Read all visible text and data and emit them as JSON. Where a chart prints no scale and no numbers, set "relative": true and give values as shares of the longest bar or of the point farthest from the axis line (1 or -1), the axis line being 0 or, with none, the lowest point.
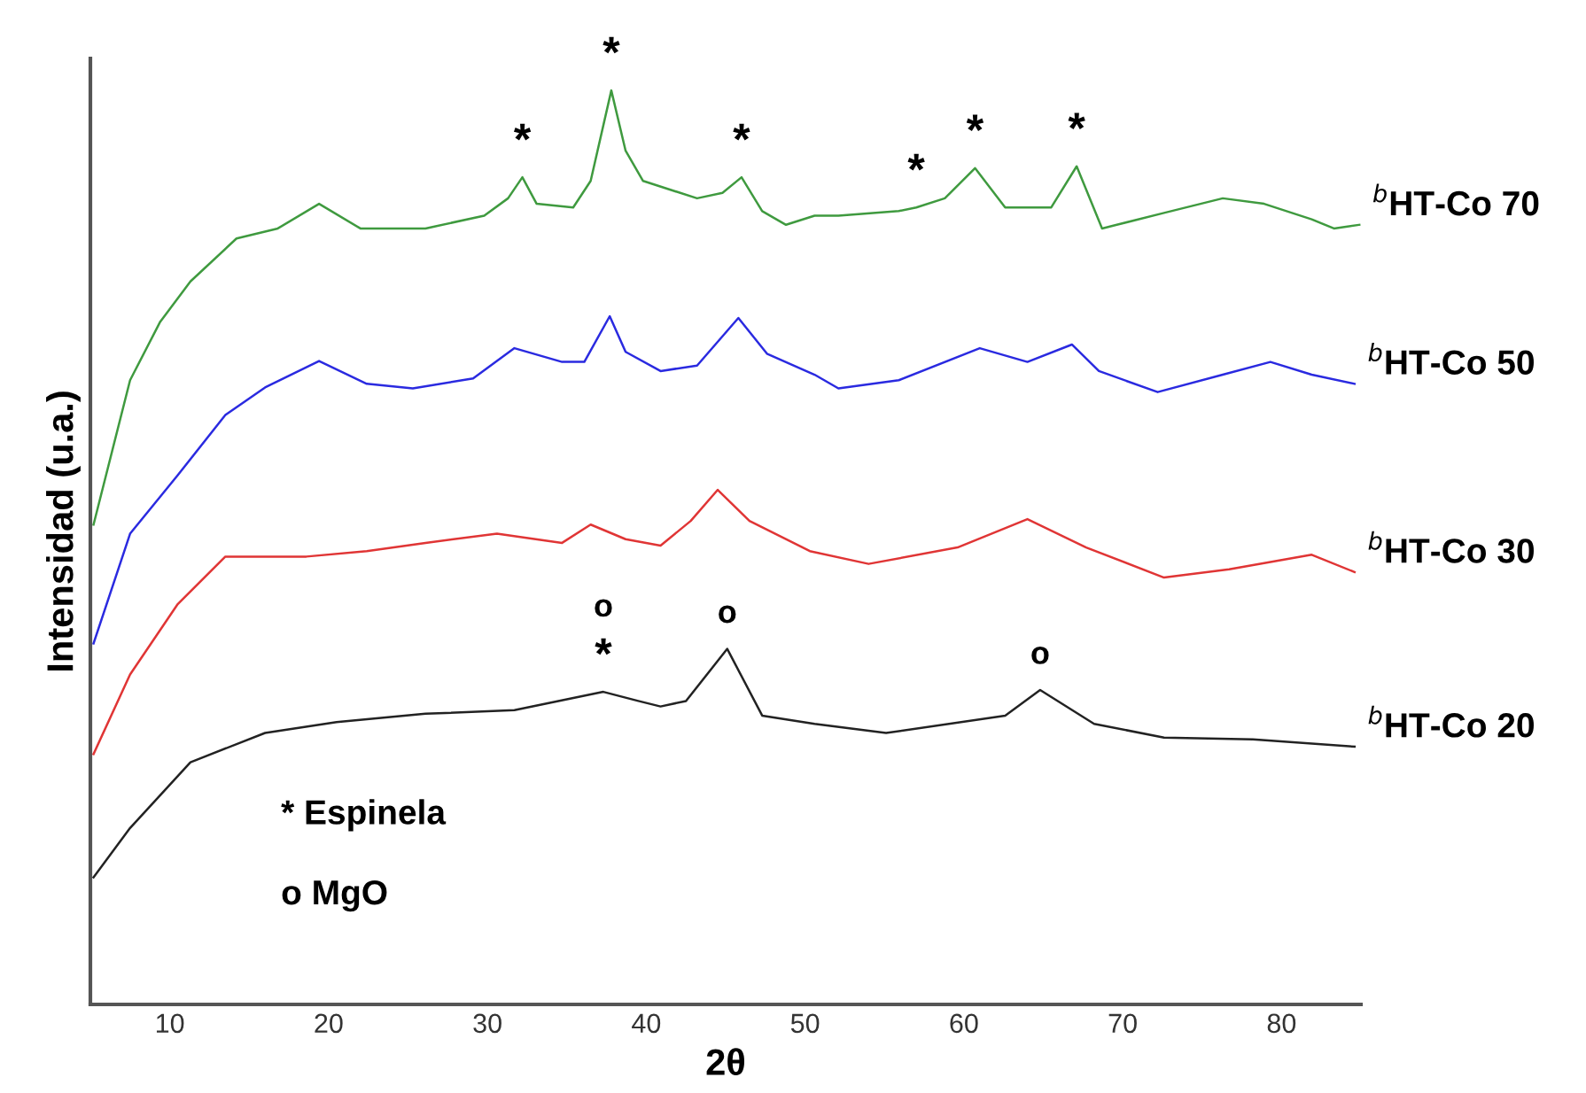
{
  "chart_data": {
    "type": "line",
    "relative": true,
    "xlabel": "2θ",
    "ylabel": "Intensidad (u.a.)",
    "xlim": [
      5,
      85
    ],
    "xticks": [
      10,
      20,
      30,
      40,
      50,
      60,
      70,
      80
    ],
    "series": [
      {
        "name": "$^{b}$HT-Co 70",
        "color": "#3f9a3f",
        "x": [
          5.2,
          7.5,
          9.4,
          11.3,
          14.2,
          16.8,
          19.4,
          22.0,
          26.1,
          29.8,
          31.3,
          32.2,
          33.1,
          35.4,
          36.5,
          37.8,
          38.7,
          39.8,
          43.2,
          44.8,
          46.0,
          47.3,
          48.8,
          50.6,
          52.1,
          55.9,
          57.0,
          58.8,
          60.7,
          62.6,
          65.5,
          67.1,
          68.7,
          72.6,
          76.3,
          78.9,
          81.9,
          83.3,
          84.9
        ],
        "values": [
          0.525,
          0.683,
          0.747,
          0.791,
          0.838,
          0.849,
          0.876,
          0.849,
          0.849,
          0.863,
          0.882,
          0.905,
          0.876,
          0.872,
          0.901,
          1.0,
          0.934,
          0.901,
          0.882,
          0.888,
          0.905,
          0.868,
          0.853,
          0.863,
          0.863,
          0.868,
          0.872,
          0.882,
          0.915,
          0.872,
          0.872,
          0.917,
          0.849,
          0.866,
          0.882,
          0.876,
          0.859,
          0.849,
          0.853
        ]
      },
      {
        "name": "$^{b}$HT-Co 50",
        "color": "#2a2ae0",
        "x": [
          5.2,
          7.5,
          10.5,
          13.5,
          16.0,
          19.4,
          22.4,
          25.3,
          29.1,
          31.7,
          34.7,
          36.1,
          37.7,
          38.7,
          40.9,
          43.2,
          45.8,
          47.6,
          50.6,
          52.1,
          55.9,
          61.0,
          64.0,
          66.8,
          68.5,
          72.2,
          76.3,
          79.3,
          81.9,
          84.6
        ],
        "values": [
          0.395,
          0.515,
          0.579,
          0.645,
          0.675,
          0.704,
          0.679,
          0.674,
          0.685,
          0.718,
          0.703,
          0.703,
          0.753,
          0.714,
          0.693,
          0.699,
          0.751,
          0.712,
          0.689,
          0.674,
          0.683,
          0.718,
          0.703,
          0.722,
          0.693,
          0.67,
          0.689,
          0.703,
          0.689,
          0.679
        ]
      },
      {
        "name": "$^{b}$HT-Co 30",
        "color": "#e03535",
        "x": [
          5.2,
          7.5,
          10.5,
          13.5,
          18.6,
          22.4,
          26.1,
          30.6,
          34.7,
          36.5,
          38.7,
          40.9,
          42.8,
          44.5,
          46.5,
          50.3,
          54.0,
          59.6,
          64.0,
          67.7,
          72.6,
          76.7,
          81.9,
          84.6
        ],
        "values": [
          0.274,
          0.361,
          0.438,
          0.49,
          0.49,
          0.496,
          0.505,
          0.515,
          0.505,
          0.525,
          0.509,
          0.502,
          0.529,
          0.563,
          0.529,
          0.496,
          0.482,
          0.5,
          0.531,
          0.5,
          0.467,
          0.476,
          0.492,
          0.473
        ]
      },
      {
        "name": "$^{b}$HT-Co 20",
        "color": "#222222",
        "x": [
          5.2,
          7.5,
          11.3,
          16.0,
          20.5,
          26.1,
          31.7,
          37.3,
          39.5,
          40.9,
          42.5,
          45.1,
          47.3,
          50.6,
          55.1,
          62.6,
          64.8,
          68.2,
          72.6,
          78.2,
          84.6
        ],
        "values": [
          0.139,
          0.193,
          0.265,
          0.297,
          0.309,
          0.318,
          0.322,
          0.342,
          0.332,
          0.326,
          0.332,
          0.389,
          0.316,
          0.307,
          0.297,
          0.316,
          0.344,
          0.307,
          0.292,
          0.29,
          0.282
        ]
      }
    ],
    "annotations": [
      {
        "text": "*",
        "x": 32.2,
        "y": 0.905
      },
      {
        "text": "*",
        "x": 37.8,
        "y": 1.0
      },
      {
        "text": "*",
        "x": 46.0,
        "y": 0.905
      },
      {
        "text": "*",
        "x": 57.0,
        "y": 0.872
      },
      {
        "text": "*",
        "x": 60.7,
        "y": 0.915
      },
      {
        "text": "*",
        "x": 67.1,
        "y": 0.917
      },
      {
        "text": "*",
        "x": 37.3,
        "y": 0.342
      },
      {
        "text": "o",
        "x": 45.1,
        "y": 0.389
      },
      {
        "text": "o",
        "x": 64.8,
        "y": 0.344
      },
      "o",
      "* Espinela",
      "o MgO"
    ]
  }
}
